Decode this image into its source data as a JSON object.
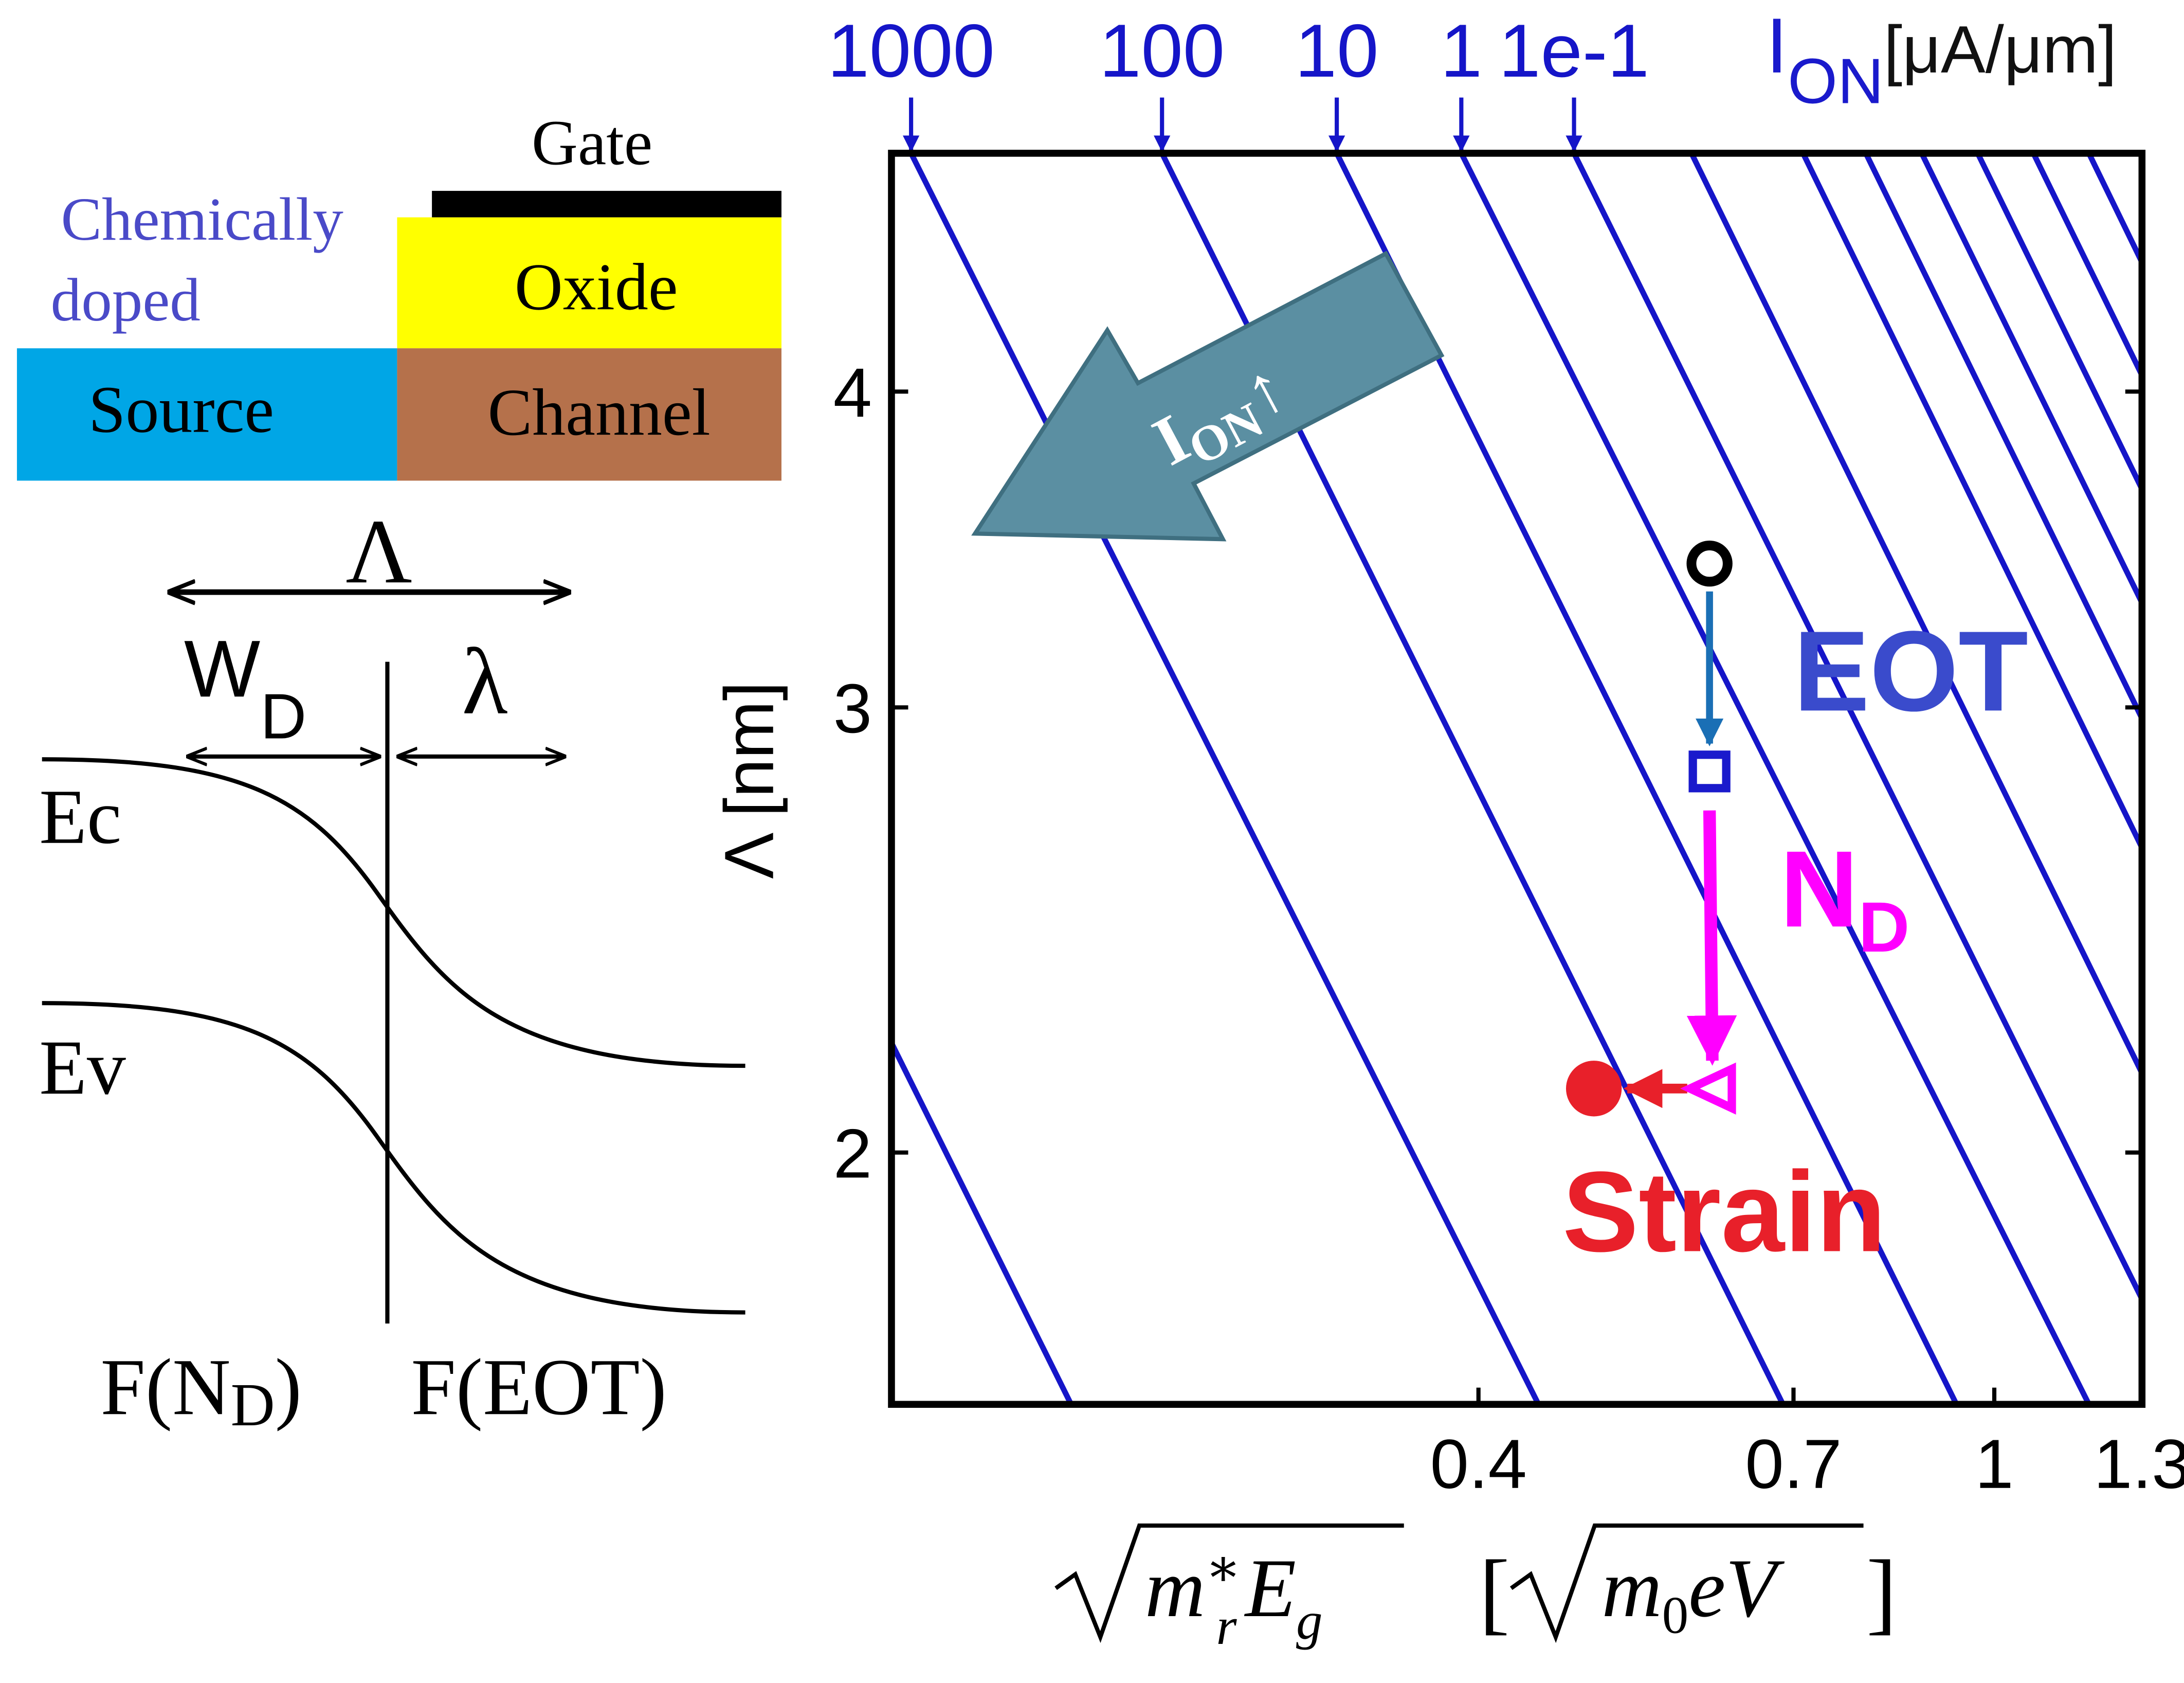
{
  "diagram": {
    "gate": "Gate",
    "oxide": "Oxide",
    "doping": [
      "Chemically",
      "doped"
    ],
    "source": "Source",
    "channel": "Channel",
    "lambda_big": "Λ",
    "w": {
      "main": "W",
      "sub": "D"
    },
    "lambda_small": "λ",
    "ec": "Ec",
    "ev": "Ev",
    "f_nd": {
      "open": "F(N",
      "sub": "D",
      "close": ")"
    },
    "f_eot": "F(EOT)"
  },
  "chart_data": {
    "type": "line",
    "xscale": "log",
    "yscale": "log",
    "top_label": {
      "main": "I",
      "sub": "ON",
      "unit": "[μA/μm]",
      "color": "#1a1acc"
    },
    "ylabel": "Λ [nm]",
    "xlabel": {
      "m": "m",
      "m_sub": "r",
      "m_sup": "∗",
      "e": "E",
      "e_sub": "g",
      "open": "[",
      "unit_m": "m",
      "unit_m_sub": "0",
      "unit_rest": "eV",
      "close": "]"
    },
    "xlim": [
      0.141,
      1.3
    ],
    "ylim": [
      1.59,
      4.97
    ],
    "xticks": [
      0.4,
      0.7,
      1,
      1.3
    ],
    "yticks": [
      2,
      3,
      4
    ],
    "series": [
      {
        "color": "#1515c8",
        "x": [
          0.141,
          0.194
        ],
        "values": [
          2.21,
          1.59
        ]
      },
      {
        "name": "1000",
        "color": "#1515c8",
        "x": [
          0.146,
          0.445
        ],
        "values": [
          4.97,
          1.59
        ]
      },
      {
        "name": "100",
        "color": "#1515c8",
        "x": [
          0.228,
          0.687
        ],
        "values": [
          4.97,
          1.59
        ]
      },
      {
        "name": "10",
        "color": "#1515c8",
        "x": [
          0.311,
          0.935
        ],
        "values": [
          4.97,
          1.59
        ]
      },
      {
        "name": "1",
        "color": "#1515c8",
        "x": [
          0.388,
          1.183
        ],
        "values": [
          4.97,
          1.59
        ]
      },
      {
        "name": "1e-1",
        "color": "#1515c8",
        "x": [
          0.474,
          1.3
        ],
        "values": [
          4.97,
          1.75
        ]
      },
      {
        "color": "#1515c8",
        "x": [
          0.584,
          1.3
        ],
        "values": [
          4.97,
          2.15
        ]
      },
      {
        "color": "#1515c8",
        "x": [
          0.712,
          1.3
        ],
        "values": [
          4.97,
          2.64
        ]
      },
      {
        "color": "#1515c8",
        "x": [
          0.796,
          1.3
        ],
        "values": [
          4.97,
          2.97
        ]
      },
      {
        "color": "#1515c8",
        "x": [
          0.879,
          1.3
        ],
        "values": [
          4.97,
          3.3
        ]
      },
      {
        "color": "#1515c8",
        "x": [
          0.971,
          1.3
        ],
        "values": [
          4.97,
          3.66
        ]
      },
      {
        "color": "#1515c8",
        "x": [
          1.072,
          1.3
        ],
        "values": [
          4.97,
          4.06
        ]
      },
      {
        "color": "#1515c8",
        "x": [
          1.183,
          1.3
        ],
        "values": [
          4.97,
          4.5
        ]
      }
    ],
    "markers": [
      {
        "x": 0.603,
        "y": 3.42,
        "shape": "circle",
        "color": "#000000"
      },
      {
        "x": 0.603,
        "y": 2.83,
        "shape": "square",
        "color": "#1a1acc"
      },
      {
        "x": 0.606,
        "y": 2.12,
        "shape": "triangle",
        "color": "#ff00ff"
      },
      {
        "x": 0.491,
        "y": 2.12,
        "shape": "dot",
        "color": "#e8202a"
      }
    ],
    "annotations": [
      {
        "text": "EOT",
        "color": "#3a4bcc"
      },
      {
        "text": "N",
        "sub": "D",
        "color": "#ff00ff"
      },
      {
        "text": "Strain",
        "color": "#e8202a"
      }
    ],
    "arrow_label": {
      "text": "I",
      "sub": "ON",
      "symbol": "↑"
    }
  }
}
